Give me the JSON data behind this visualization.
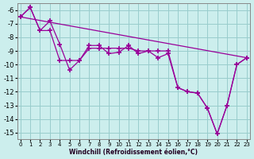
{
  "xlabel": "Windchill (Refroidissement éolien,°C)",
  "background_color": "#cceeed",
  "grid_color": "#99cccc",
  "line_color": "#990099",
  "xlim": [
    -0.3,
    23.3
  ],
  "ymin": -15.5,
  "ymax": -5.5,
  "yticks": [
    -6,
    -7,
    -8,
    -9,
    -10,
    -11,
    -12,
    -13,
    -14,
    -15
  ],
  "xticks": [
    0,
    1,
    2,
    3,
    4,
    5,
    6,
    7,
    8,
    9,
    10,
    11,
    12,
    13,
    14,
    15,
    16,
    17,
    18,
    19,
    20,
    21,
    22,
    23
  ],
  "line1_x": [
    0,
    1,
    2,
    3,
    4,
    5,
    6,
    7,
    8,
    9,
    10,
    11,
    12,
    13,
    14,
    15,
    16,
    17,
    18,
    19,
    20,
    21,
    22,
    23
  ],
  "line1_y": [
    -6.5,
    -5.8,
    -7.5,
    -6.8,
    -8.5,
    -10.4,
    -9.7,
    -8.6,
    -8.6,
    -9.2,
    -9.1,
    -8.6,
    -9.2,
    -9.0,
    -9.5,
    -9.2,
    -11.7,
    -12.0,
    -12.1,
    -13.2,
    -15.1,
    -13.0,
    -10.0,
    -9.5
  ],
  "line2_x": [
    0,
    1,
    2,
    3,
    4,
    5,
    6,
    7,
    8,
    9,
    10,
    11,
    12,
    13,
    14,
    15,
    16,
    17,
    18,
    19,
    20,
    21,
    22,
    23
  ],
  "line2_y": [
    -6.5,
    -5.8,
    -7.5,
    -7.5,
    -9.7,
    -9.7,
    -9.7,
    -8.8,
    -8.8,
    -8.8,
    -8.8,
    -8.8,
    -9.0,
    -9.0,
    -9.0,
    -9.0,
    -11.7,
    -12.0,
    -12.1,
    -13.2,
    -15.1,
    -13.0,
    -10.0,
    -9.5
  ],
  "line3_x": [
    0,
    23
  ],
  "line3_y": [
    -6.5,
    -9.5
  ]
}
